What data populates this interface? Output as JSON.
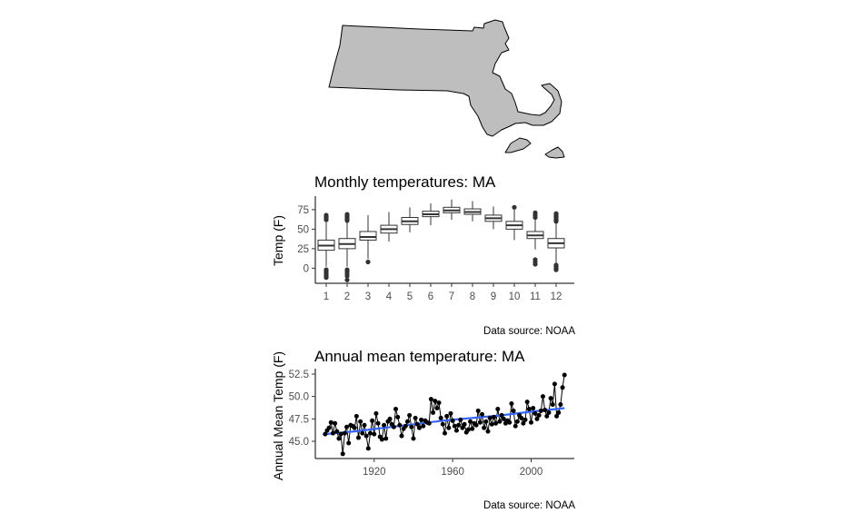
{
  "map": {
    "region": "MA",
    "fill": "#bebebe",
    "stroke": "#000000"
  },
  "chart_data": [
    {
      "type": "box",
      "title": "Monthly temperatures: MA",
      "xlabel": "",
      "ylabel": "Temp (F)",
      "caption": "Data source: NOAA",
      "categories": [
        "1",
        "2",
        "3",
        "4",
        "5",
        "6",
        "7",
        "8",
        "9",
        "10",
        "11",
        "12"
      ],
      "yticks": [
        0,
        25,
        50,
        75
      ],
      "ylim": [
        -17,
        90
      ],
      "grid": false,
      "boxes": [
        {
          "whisker_low": 2,
          "q1": 23,
          "median": 29,
          "q3": 36,
          "whisker_high": 59,
          "outliers": [
            -12,
            -10,
            -8,
            -6,
            -4,
            -2,
            62,
            64,
            66,
            68
          ]
        },
        {
          "whisker_low": 2,
          "q1": 25,
          "median": 31,
          "q3": 38,
          "whisker_high": 58,
          "outliers": [
            -15,
            -10,
            -7,
            -4,
            -2,
            61,
            63,
            65,
            67,
            69
          ]
        },
        {
          "whisker_low": 12,
          "q1": 36,
          "median": 40,
          "q3": 47,
          "whisker_high": 68,
          "outliers": [
            8
          ]
        },
        {
          "whisker_low": 34,
          "q1": 45,
          "median": 50,
          "q3": 55,
          "whisker_high": 72,
          "outliers": []
        },
        {
          "whisker_low": 46,
          "q1": 56,
          "median": 60,
          "q3": 65,
          "whisker_high": 78,
          "outliers": []
        },
        {
          "whisker_low": 55,
          "q1": 66,
          "median": 69,
          "q3": 73,
          "whisker_high": 83,
          "outliers": []
        },
        {
          "whisker_low": 62,
          "q1": 71,
          "median": 74,
          "q3": 78,
          "whisker_high": 88,
          "outliers": []
        },
        {
          "whisker_low": 60,
          "q1": 69,
          "median": 72,
          "q3": 76,
          "whisker_high": 86,
          "outliers": []
        },
        {
          "whisker_low": 50,
          "q1": 60,
          "median": 64,
          "q3": 68,
          "whisker_high": 79,
          "outliers": []
        },
        {
          "whisker_low": 36,
          "q1": 50,
          "median": 55,
          "q3": 60,
          "whisker_high": 75,
          "outliers": [
            78
          ]
        },
        {
          "whisker_low": 24,
          "q1": 38,
          "median": 42,
          "q3": 47,
          "whisker_high": 62,
          "outliers": [
            5,
            8,
            11,
            65,
            68,
            71
          ]
        },
        {
          "whisker_low": 4,
          "q1": 26,
          "median": 32,
          "q3": 38,
          "whisker_high": 58,
          "outliers": [
            -2,
            0,
            2,
            4,
            60,
            62,
            64,
            66,
            68,
            70
          ]
        }
      ]
    },
    {
      "type": "line",
      "title": "Annual mean temperature: MA",
      "xlabel": "",
      "ylabel": "Annual Mean Temp (F)",
      "caption": "Data source: NOAA",
      "xticks": [
        1920,
        1960,
        2000
      ],
      "yticks": [
        45.0,
        47.5,
        50.0,
        52.5
      ],
      "ytick_labels": [
        "45.0",
        "47.5",
        "50.0",
        "52.5"
      ],
      "xlim": [
        1890,
        2022
      ],
      "ylim": [
        43.0,
        53.0
      ],
      "grid": false,
      "series": [
        {
          "x": [
            1895,
            1896,
            1897,
            1898,
            1899,
            1900,
            1901,
            1902,
            1903,
            1904,
            1905,
            1906,
            1907,
            1908,
            1909,
            1910,
            1911,
            1912,
            1913,
            1914,
            1915,
            1916,
            1917,
            1918,
            1919,
            1920,
            1921,
            1922,
            1923,
            1924,
            1925,
            1926,
            1927,
            1928,
            1929,
            1930,
            1931,
            1932,
            1933,
            1934,
            1935,
            1936,
            1937,
            1938,
            1939,
            1940,
            1941,
            1942,
            1943,
            1944,
            1945,
            1946,
            1947,
            1948,
            1949,
            1950,
            1951,
            1952,
            1953,
            1954,
            1955,
            1956,
            1957,
            1958,
            1959,
            1960,
            1961,
            1962,
            1963,
            1964,
            1965,
            1966,
            1967,
            1968,
            1969,
            1970,
            1971,
            1972,
            1973,
            1974,
            1975,
            1976,
            1977,
            1978,
            1979,
            1980,
            1981,
            1982,
            1983,
            1984,
            1985,
            1986,
            1987,
            1988,
            1989,
            1990,
            1991,
            1992,
            1993,
            1994,
            1995,
            1996,
            1997,
            1998,
            1999,
            2000,
            2001,
            2002,
            2003,
            2004,
            2005,
            2006,
            2007,
            2008,
            2009,
            2010,
            2011,
            2012,
            2013,
            2014,
            2015,
            2016,
            2017
          ],
          "y": [
            45.8,
            46.2,
            46.5,
            47.1,
            45.9,
            47.0,
            46.1,
            45.3,
            45.8,
            43.6,
            45.9,
            46.6,
            44.8,
            46.8,
            46.7,
            46.5,
            47.8,
            45.4,
            47.2,
            45.9,
            46.8,
            45.6,
            44.2,
            45.9,
            47.3,
            45.8,
            48.1,
            47.0,
            45.5,
            45.2,
            46.8,
            45.3,
            47.2,
            47.5,
            46.9,
            46.6,
            48.6,
            47.7,
            46.8,
            45.6,
            46.4,
            46.7,
            47.2,
            47.9,
            46.6,
            45.3,
            47.6,
            46.9,
            46.5,
            47.4,
            46.7,
            47.3,
            47.1,
            47.0,
            49.7,
            48.2,
            49.5,
            48.7,
            49.3,
            47.6,
            46.9,
            45.9,
            47.8,
            46.5,
            48.1,
            47.3,
            46.7,
            46.2,
            46.8,
            47.4,
            46.5,
            46.9,
            46.0,
            46.3,
            47.2,
            46.4,
            47.0,
            46.8,
            48.4,
            47.1,
            48.0,
            46.5,
            47.2,
            46.1,
            47.6,
            46.9,
            47.7,
            47.0,
            48.6,
            47.2,
            47.9,
            47.5,
            47.0,
            47.3,
            47.1,
            49.2,
            48.4,
            46.7,
            47.2,
            47.9,
            47.6,
            47.0,
            47.4,
            49.4,
            48.6,
            47.1,
            48.7,
            48.1,
            47.5,
            47.9,
            48.4,
            50.0,
            48.5,
            47.8,
            48.2,
            49.8,
            49.1,
            51.4,
            47.8,
            48.2,
            49.1,
            51.0,
            52.4
          ]
        }
      ],
      "trend": {
        "method": "loess",
        "color": "#3366ff",
        "x": [
          1895,
          1910,
          1925,
          1940,
          1955,
          1970,
          1985,
          2000,
          2017
        ],
        "y": [
          45.8,
          46.1,
          46.5,
          46.9,
          47.3,
          47.6,
          47.9,
          48.3,
          48.7
        ]
      }
    }
  ]
}
